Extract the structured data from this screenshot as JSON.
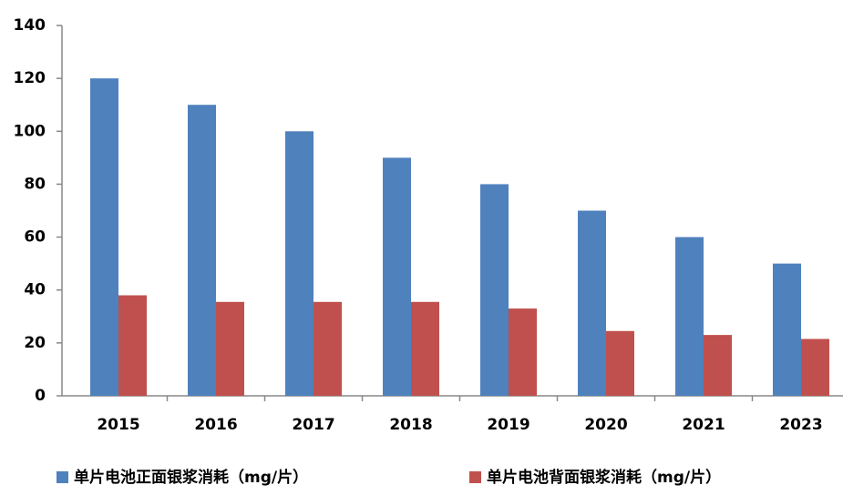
{
  "chart_data": {
    "type": "bar",
    "categories": [
      "2015",
      "2016",
      "2017",
      "2018",
      "2019",
      "2020",
      "2021",
      "2023"
    ],
    "series": [
      {
        "name": "单片电池正面银浆消耗（mg/片）",
        "color": "#4f81bd",
        "values": [
          120,
          110,
          100,
          90,
          80,
          70,
          60,
          50
        ]
      },
      {
        "name": "单片电池背面银浆消耗（mg/片）",
        "color": "#c0504d",
        "values": [
          38,
          35.5,
          35.5,
          35.5,
          33,
          24.5,
          23,
          21.5
        ]
      }
    ],
    "ylim": [
      0,
      140
    ],
    "yticks": [
      0,
      20,
      40,
      60,
      80,
      100,
      120,
      140
    ],
    "grid": false,
    "legend": "bottom"
  }
}
